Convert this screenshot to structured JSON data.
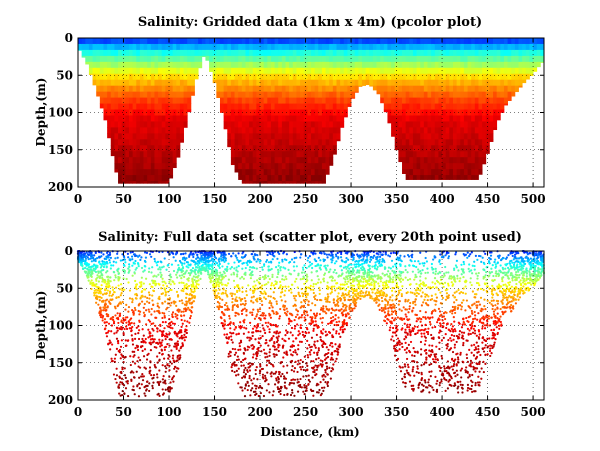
{
  "chart_data": [
    {
      "type": "heatmap",
      "title": "Salinity: Gridded data (1km x 4m) (pcolor plot)",
      "xlabel": "",
      "ylabel": "Depth,(m)",
      "xlim": [
        0,
        512
      ],
      "ylim": [
        200,
        0
      ],
      "y_reversed": true,
      "xticks": [
        0,
        50,
        100,
        150,
        200,
        250,
        300,
        350,
        400,
        450,
        500
      ],
      "yticks": [
        0,
        50,
        100,
        150,
        200
      ],
      "grid": true,
      "grid_resolution": {
        "dx_km": 1,
        "dz_m": 4
      },
      "colormap": "jet",
      "profile_max_depth": [
        [
          0,
          12
        ],
        [
          10,
          35
        ],
        [
          20,
          70
        ],
        [
          30,
          110
        ],
        [
          40,
          170
        ],
        [
          45,
          195
        ],
        [
          100,
          195
        ],
        [
          110,
          160
        ],
        [
          120,
          110
        ],
        [
          130,
          55
        ],
        [
          138,
          25
        ],
        [
          142,
          30
        ],
        [
          150,
          60
        ],
        [
          160,
          110
        ],
        [
          170,
          170
        ],
        [
          180,
          195
        ],
        [
          270,
          195
        ],
        [
          280,
          165
        ],
        [
          290,
          120
        ],
        [
          300,
          85
        ],
        [
          310,
          65
        ],
        [
          320,
          62
        ],
        [
          330,
          75
        ],
        [
          340,
          105
        ],
        [
          350,
          150
        ],
        [
          360,
          190
        ],
        [
          440,
          190
        ],
        [
          450,
          155
        ],
        [
          460,
          115
        ],
        [
          470,
          90
        ],
        [
          480,
          75
        ],
        [
          490,
          60
        ],
        [
          500,
          48
        ],
        [
          505,
          40
        ],
        [
          512,
          30
        ]
      ],
      "salinity_band_depth_m": {
        "surface_low_end": 20,
        "yellow_band": 50,
        "orange_band": 80,
        "deep_red_below": 110
      }
    },
    {
      "type": "scatter",
      "title": "Salinity: Full data set (scatter plot, every 20th point used)",
      "xlabel": "Distance, (km)",
      "ylabel": "Depth,(m)",
      "xlim": [
        0,
        512
      ],
      "ylim": [
        200,
        0
      ],
      "y_reversed": true,
      "xticks": [
        0,
        50,
        100,
        150,
        200,
        250,
        300,
        350,
        400,
        450,
        500
      ],
      "yticks": [
        0,
        50,
        100,
        150,
        200
      ],
      "grid": true,
      "sampling": "every 20th point used",
      "colormap": "jet"
    }
  ]
}
